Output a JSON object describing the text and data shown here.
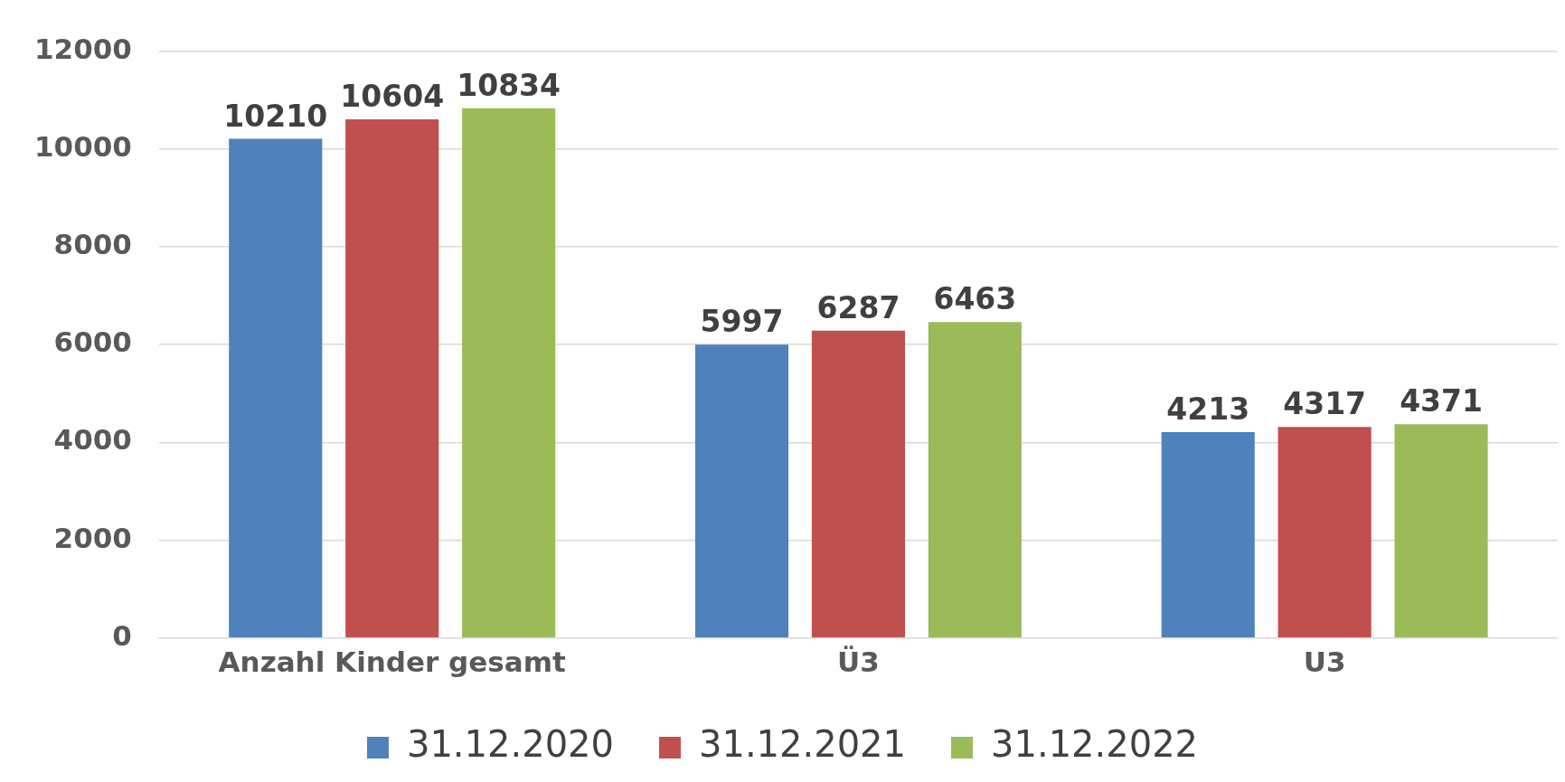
{
  "chart_data": {
    "type": "bar",
    "categories": [
      "Anzahl Kinder gesamt",
      "Ü3",
      "U3"
    ],
    "series": [
      {
        "name": "31.12.2020",
        "color": "#4f81bd",
        "values": [
          10210,
          5997,
          4213
        ]
      },
      {
        "name": "31.12.2021",
        "color": "#c0504d",
        "values": [
          10604,
          6287,
          4317
        ]
      },
      {
        "name": "31.12.2022",
        "color": "#9bbb59",
        "values": [
          10834,
          6463,
          4371
        ]
      }
    ],
    "ylim": [
      0,
      12000
    ],
    "yticks": [
      0,
      2000,
      4000,
      6000,
      8000,
      10000,
      12000
    ],
    "grid": "y",
    "legend": "bottom",
    "data_labels": true
  }
}
